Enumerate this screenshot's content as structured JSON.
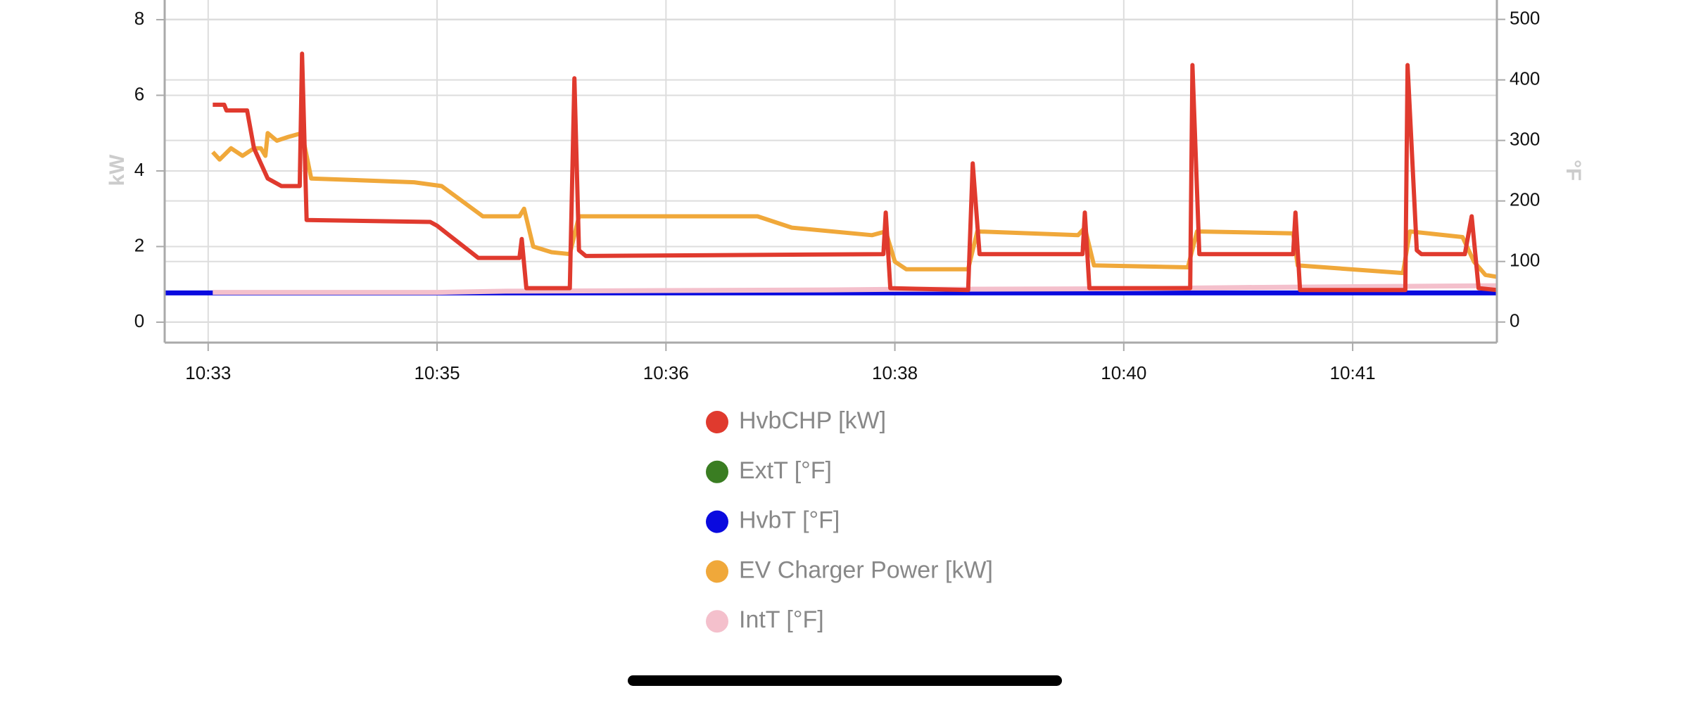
{
  "chart_data": {
    "type": "line",
    "y_label": "kW",
    "y2_label": "°F",
    "xlim": [
      -1.9,
      56.3
    ],
    "xticks": [
      {
        "value": 0,
        "label": "10:33"
      },
      {
        "value": 10,
        "label": "10:35"
      },
      {
        "value": 20,
        "label": "10:36"
      },
      {
        "value": 30,
        "label": "10:38"
      },
      {
        "value": 40,
        "label": "10:40"
      },
      {
        "value": 50,
        "label": "10:41"
      }
    ],
    "ylim": [
      -0.54,
      8.52
    ],
    "yticks": [
      0,
      2,
      4,
      6,
      8
    ],
    "y2lim": [
      -34,
      532
    ],
    "y2ticks": [
      0,
      100,
      200,
      300,
      400,
      500
    ],
    "grid": true,
    "series": [
      {
        "name": "HvbCHP [kW]",
        "color": "#e03a2e",
        "x": [
          0.2,
          0.7,
          0.8,
          1.7,
          2.0,
          2.6,
          3.2,
          4.0,
          4.1,
          4.3,
          9.7,
          10.0,
          11.8,
          13.6,
          13.7,
          13.9,
          15.8,
          16.0,
          16.2,
          16.5,
          29.5,
          29.6,
          29.8,
          33.2,
          33.4,
          33.7,
          38.2,
          38.3,
          38.5,
          42.9,
          43.0,
          43.3,
          47.4,
          47.5,
          47.7,
          52.3,
          52.4,
          52.8,
          53.0,
          54.9,
          55.2,
          55.5,
          56.3
        ],
        "values": [
          5.75,
          5.75,
          5.6,
          5.6,
          4.6,
          3.8,
          3.6,
          3.6,
          7.1,
          2.7,
          2.65,
          2.55,
          1.7,
          1.7,
          2.2,
          0.9,
          0.9,
          6.45,
          1.9,
          1.75,
          1.8,
          2.9,
          0.9,
          0.85,
          4.2,
          1.8,
          1.8,
          2.9,
          0.9,
          0.9,
          6.8,
          1.8,
          1.8,
          2.9,
          0.85,
          0.85,
          6.8,
          1.9,
          1.8,
          1.8,
          2.8,
          0.9,
          0.85
        ]
      },
      {
        "name": "ExtT [°F]",
        "color": "#3a7d22",
        "axis": "y2",
        "x": [],
        "values": []
      },
      {
        "name": "HvbT [°F]",
        "color": "#0a0adf",
        "axis": "y2",
        "x": [
          -1.9,
          56.3
        ],
        "values": [
          48,
          48
        ]
      },
      {
        "name": "EV Charger Power [kW]",
        "color": "#f0a83a",
        "x": [
          0.2,
          0.5,
          1.0,
          1.5,
          2.0,
          2.3,
          2.5,
          2.6,
          3.0,
          3.5,
          4.1,
          4.5,
          9.0,
          10.2,
          12.0,
          13.6,
          13.8,
          14.2,
          15.0,
          15.8,
          16.2,
          24.0,
          25.5,
          29.0,
          29.6,
          30.0,
          30.5,
          33.2,
          33.6,
          38.0,
          38.3,
          38.7,
          42.8,
          43.2,
          47.4,
          47.6,
          52.2,
          52.5,
          54.8,
          55.3,
          55.8,
          56.3
        ],
        "values": [
          4.5,
          4.3,
          4.6,
          4.4,
          4.6,
          4.6,
          4.4,
          5.0,
          4.8,
          4.9,
          5.0,
          3.8,
          3.7,
          3.6,
          2.8,
          2.8,
          3.0,
          2.0,
          1.85,
          1.8,
          2.8,
          2.8,
          2.5,
          2.3,
          2.4,
          1.6,
          1.4,
          1.4,
          2.4,
          2.3,
          2.5,
          1.5,
          1.45,
          2.4,
          2.35,
          1.5,
          1.3,
          2.4,
          2.25,
          1.6,
          1.25,
          1.2
        ]
      },
      {
        "name": "IntT [°F]",
        "color": "#f4c0cc",
        "axis": "y2",
        "x": [
          0.2,
          10,
          13,
          20,
          27,
          30,
          40,
          45,
          56.3
        ],
        "values": [
          49,
          49,
          51,
          52,
          53,
          54,
          55,
          57,
          60
        ]
      }
    ]
  }
}
